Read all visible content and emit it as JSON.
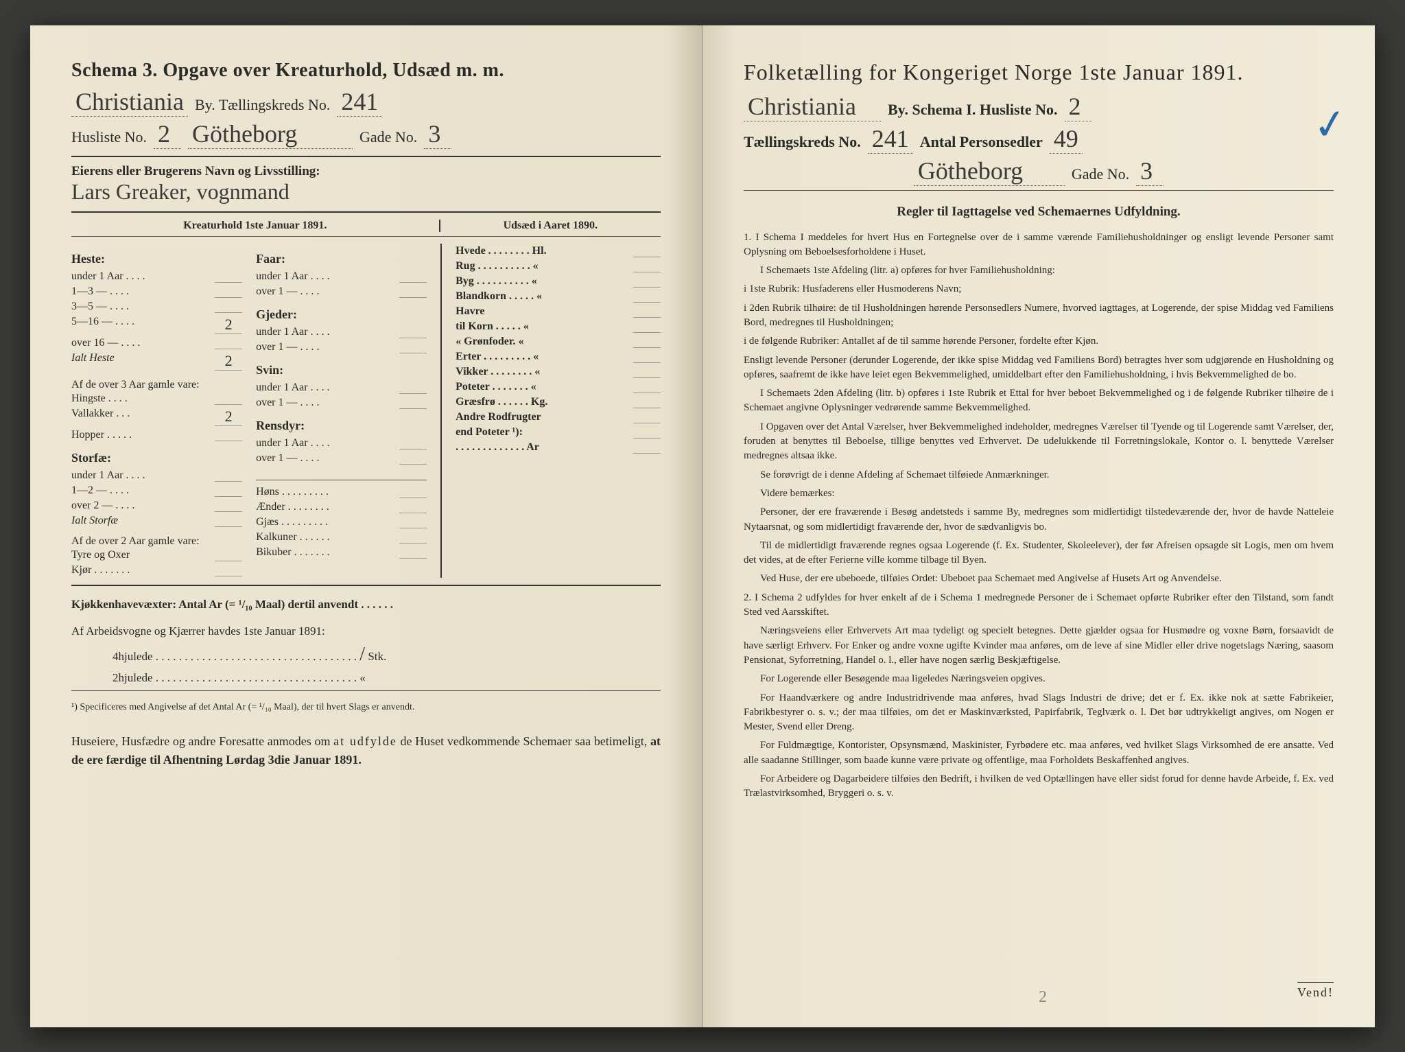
{
  "left": {
    "schema_title": "Schema 3.  Opgave over Kreaturhold, Udsæd m. m.",
    "city": "Christiania",
    "by_label": "By.  Tællingskreds No.",
    "kreds_no": "241",
    "husliste_label": "Husliste No.",
    "husliste_no": "2",
    "street": "Götheborg",
    "gade_label": "Gade No.",
    "gade_no": "3",
    "eier_label": "Eierens eller Brugerens Navn og Livsstilling:",
    "eier_value": "Lars Greaker, vognmand",
    "kreatur_title": "Kreaturhold 1ste Januar 1891.",
    "udsaed_title": "Udsæd i Aaret 1890.",
    "heste": {
      "title": "Heste:",
      "rows": [
        {
          "label": "under 1 Aar . . . .",
          "val": ""
        },
        {
          "label": "1—3    —  . . . .",
          "val": ""
        },
        {
          "label": "3—5    —  . . . .",
          "val": ""
        },
        {
          "label": "5—16   —  . . . .",
          "val": "2"
        },
        {
          "label": "over 16 —  . . . .",
          "val": ""
        }
      ],
      "ialt_label": "Ialt Heste",
      "ialt_val": "2",
      "over3_label": "Af de over 3 Aar gamle vare:",
      "sub": [
        {
          "label": "Hingste . . . .",
          "val": ""
        },
        {
          "label": "Vallakker . . .",
          "val": "2"
        },
        {
          "label": "Hopper . . . . .",
          "val": ""
        }
      ]
    },
    "storfe": {
      "title": "Storfæ:",
      "rows": [
        {
          "label": "under 1 Aar . . . .",
          "val": ""
        },
        {
          "label": "1—2    —   . . . .",
          "val": ""
        },
        {
          "label": "over 2 —   . . . .",
          "val": ""
        }
      ],
      "ialt_label": "Ialt Storfæ",
      "ialt_val": "",
      "over2_label": "Af de over 2 Aar gamle vare:",
      "sub": [
        {
          "label": "Tyre og Oxer",
          "val": ""
        },
        {
          "label": "Kjør . . . . . . .",
          "val": ""
        }
      ]
    },
    "col2_groups": [
      {
        "title": "Faar:",
        "rows": [
          {
            "label": "under 1 Aar . . . .",
            "val": ""
          },
          {
            "label": "over 1   —  . . . .",
            "val": ""
          }
        ]
      },
      {
        "title": "Gjeder:",
        "rows": [
          {
            "label": "under 1 Aar . . . .",
            "val": ""
          },
          {
            "label": "over 1   —  . . . .",
            "val": ""
          }
        ]
      },
      {
        "title": "Svin:",
        "rows": [
          {
            "label": "under 1 Aar . . . .",
            "val": ""
          },
          {
            "label": "over 1   —  . . . .",
            "val": ""
          }
        ]
      },
      {
        "title": "Rensdyr:",
        "rows": [
          {
            "label": "under 1 Aar . . . .",
            "val": ""
          },
          {
            "label": "over 1   —  . . . .",
            "val": ""
          }
        ]
      }
    ],
    "col2_singles": [
      {
        "label": "Høns . . . . . . . . .",
        "val": ""
      },
      {
        "label": "Ænder . . . . . . . .",
        "val": ""
      },
      {
        "label": "Gjæs . . . . . . . . .",
        "val": ""
      },
      {
        "label": "Kalkuner . . . . . .",
        "val": ""
      },
      {
        "label": "Bikuber . . . . . . .",
        "val": ""
      }
    ],
    "udsaed_rows": [
      {
        "label": "Hvede . . . . . . . . Hl.",
        "val": ""
      },
      {
        "label": "Rug . . . . . . . . . .  «",
        "val": ""
      },
      {
        "label": "Byg . . . . . . . . . .  «",
        "val": ""
      },
      {
        "label": "Blandkorn . . . . .  «",
        "val": ""
      },
      {
        "label": "Havre",
        "val": ""
      },
      {
        "label": "    til Korn . . . . .  «",
        "val": ""
      },
      {
        "label": "    «  Grønfoder.  «",
        "val": ""
      },
      {
        "label": "Erter . . . . . . . . .  «",
        "val": ""
      },
      {
        "label": "Vikker . . . . . . . .  «",
        "val": ""
      },
      {
        "label": "Poteter . . . . . . .  «",
        "val": ""
      },
      {
        "label": "Græsfrø . . . . . . Kg.",
        "val": ""
      },
      {
        "label": "Andre Rodfrugter",
        "val": ""
      },
      {
        "label": "    end Poteter ¹):",
        "val": ""
      },
      {
        "label": ". . . . . . . . . . . . . Ar",
        "val": ""
      }
    ],
    "kjokken_label": "Kjøkkenhavevæxter:   Antal Ar (= ¹/₁₀ Maal) dertil anvendt . . . . . .",
    "arbeidsvogne_label": "Af Arbeidsvogne og Kjærrer havdes 1ste Januar 1891:",
    "hjul4": "4hjulede . . . . . . . . . . . . . . . . . . . . . . . . . . . . . . . . . . .",
    "stk": "Stk.",
    "hjul2": "2hjulede . . . . . . . . . . . . . . . . . . . . . . . . . . . . . . . . . . .   «",
    "footnote": "¹) Specificeres med Angivelse af det Antal Ar (= ¹/₁₀ Maal), der til hvert Slags er anvendt.",
    "closing": "Huseiere, Husfædre og andre Foresatte anmodes om at udfylde de Huset vedkommende Schemaer saa betimeligt, at de ere færdige til Afhentning Lørdag 3die Januar 1891."
  },
  "right": {
    "title": "Folketælling for Kongeriget Norge 1ste Januar 1891.",
    "city": "Christiania",
    "by_label": "By.   Schema I.   Husliste No.",
    "husliste_no": "2",
    "kreds_label": "Tællingskreds No.",
    "kreds_no": "241",
    "antal_label": "Antal Personsedler",
    "antal_no": "49",
    "street": "Götheborg",
    "gade_label": "Gade No.",
    "gade_no": "3",
    "regler_title": "Regler til Iagttagelse ved Schemaernes Udfyldning.",
    "p1a": "1. I Schema I meddeles for hvert Hus en Fortegnelse over de i samme værende Familiehusholdninger og ensligt levende Personer samt Oplysning om Beboelsesforholdene i Huset.",
    "p1b": "I Schemaets 1ste Afdeling (litr. a) opføres for hver Familiehusholdning:",
    "p1c": "i 1ste Rubrik: Husfaderens eller Husmoderens Navn;",
    "p1d": "i 2den Rubrik tilhøire: de til Husholdningen hørende Personsedlers Numere, hvorved iagttages, at Logerende, der spise Middag ved Familiens Bord, medregnes til Husholdningen;",
    "p1e": "i de følgende Rubriker: Antallet af de til samme hørende Personer, fordelte efter Kjøn.",
    "p2": "Ensligt levende Personer (derunder Logerende, der ikke spise Middag ved Familiens Bord) betragtes hver som udgjørende en Husholdning og opføres, saafremt de ikke have leiet egen Bekvemmelighed, umiddelbart efter den Familiehusholdning, i hvis Bekvemmelighed de bo.",
    "p3": "I Schemaets 2den Afdeling (litr. b) opføres i 1ste Rubrik et Ettal for hver beboet Bekvemmelighed og i de følgende Rubriker tilhøire de i Schemaet angivne Oplysninger vedrørende samme Bekvemmelighed.",
    "p4": "I Opgaven over det Antal Værelser, hver Bekvemmelighed indeholder, medregnes Værelser til Tyende og til Logerende samt Værelser, der, foruden at benyttes til Beboelse, tillige benyttes ved Erhvervet. De udelukkende til Forretningslokale, Kontor o. l. benyttede Værelser medregnes altsaa ikke.",
    "p5": "Se forøvrigt de i denne Afdeling af Schemaet tilføiede Anmærkninger.",
    "p6": "Videre bemærkes:",
    "p7": "Personer, der ere fraværende i Besøg andetsteds i samme By, medregnes som midlertidigt tilstedeværende der, hvor de havde Natteleie Nytaarsnat, og som midlertidigt fraværende der, hvor de sædvanligvis bo.",
    "p8": "Til de midlertidigt fraværende regnes ogsaa Logerende (f. Ex. Studenter, Skoleelever), der før Afreisen opsagde sit Logis, men om hvem det vides, at de efter Ferierne ville komme tilbage til Byen.",
    "p9": "Ved Huse, der ere ubeboede, tilføies Ordet: Ubeboet paa Schemaet med Angivelse af Husets Art og Anvendelse.",
    "p10": "2. I Schema 2 udfyldes for hver enkelt af de i Schema 1 medregnede Personer de i Schemaet opførte Rubriker efter den Tilstand, som fandt Sted ved Aarsskiftet.",
    "p11": "Næringsveiens eller Erhvervets Art maa tydeligt og specielt betegnes. Dette gjælder ogsaa for Husmødre og voxne Børn, forsaavidt de have særligt Erhverv. For Enker og andre voxne ugifte Kvinder maa anføres, om de leve af sine Midler eller drive nogetslags Næring, saasom Pensionat, Syforretning, Handel o. l., eller have nogen særlig Beskjæftigelse.",
    "p12": "For Logerende eller Besøgende maa ligeledes Næringsveien opgives.",
    "p13": "For Haandværkere og andre Industridrivende maa anføres, hvad Slags Industri de drive; det er f. Ex. ikke nok at sætte Fabrikeier, Fabrikbestyrer o. s. v.; der maa tilføies, om det er Maskinværksted, Papirfabrik, Teglværk o. l. Det bør udtrykkeligt angives, om Nogen er Mester, Svend eller Dreng.",
    "p14": "For Fuldmægtige, Kontorister, Opsynsmænd, Maskinister, Fyrbødere etc. maa anføres, ved hvilket Slags Virksomhed de ere ansatte. Ved alle saadanne Stillinger, som baade kunne være private og offentlige, maa Forholdets Beskaffenhed angives.",
    "p15": "For Arbeidere og Dagarbeidere tilføies den Bedrift, i hvilken de ved Optællingen have eller sidst forud for denne havde Arbeide, f. Ex. ved Trælastvirksomhed, Bryggeri o. s. v.",
    "vend": "Vend!",
    "pg2": "2"
  }
}
